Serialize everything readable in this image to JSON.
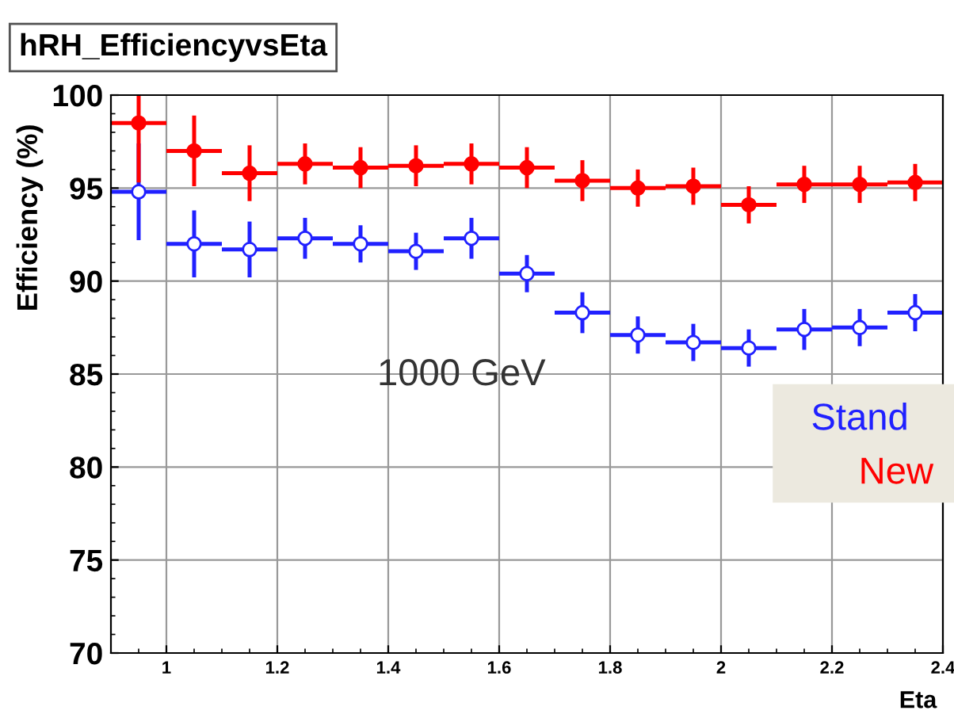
{
  "chart_data": {
    "type": "scatter",
    "title": "hRH_EfficiencyvsEta",
    "xlabel": "Eta",
    "ylabel": "Efficiency (%)",
    "x": [
      0.95,
      1.05,
      1.15,
      1.25,
      1.35,
      1.45,
      1.55,
      1.65,
      1.75,
      1.85,
      1.95,
      2.05,
      2.15,
      2.25,
      2.35
    ],
    "series": [
      {
        "name": "Stand",
        "color": "#2020ff",
        "marker": "open_circle",
        "values": [
          94.8,
          92.0,
          91.7,
          92.3,
          92.0,
          91.6,
          92.3,
          90.4,
          88.3,
          87.1,
          86.7,
          86.4,
          87.4,
          87.5,
          88.3
        ],
        "errors": [
          2.6,
          1.8,
          1.5,
          1.1,
          1.0,
          1.0,
          1.1,
          1.0,
          1.1,
          1.0,
          1.0,
          1.0,
          1.1,
          1.0,
          1.0
        ],
        "xerrors": [
          0.05,
          0.05,
          0.05,
          0.05,
          0.05,
          0.05,
          0.05,
          0.05,
          0.05,
          0.05,
          0.05,
          0.05,
          0.05,
          0.05,
          0.05
        ]
      },
      {
        "name": "New",
        "color": "#ff0000",
        "marker": "circle",
        "values": [
          98.5,
          97.0,
          95.8,
          96.3,
          96.1,
          96.2,
          96.3,
          96.1,
          95.4,
          95.0,
          95.1,
          94.1,
          95.2,
          95.2,
          95.3
        ],
        "errors": [
          3.2,
          1.9,
          1.5,
          1.1,
          1.1,
          1.1,
          1.1,
          1.1,
          1.1,
          1.0,
          1.0,
          1.0,
          1.0,
          1.0,
          1.0
        ],
        "xerrors": [
          0.05,
          0.05,
          0.05,
          0.05,
          0.05,
          0.05,
          0.05,
          0.05,
          0.05,
          0.05,
          0.05,
          0.05,
          0.05,
          0.05,
          0.05
        ]
      }
    ],
    "xlim": [
      0.9,
      2.4
    ],
    "xticks": [
      1,
      1.2,
      1.4,
      1.6,
      1.8,
      2,
      2.2,
      2.4
    ],
    "ylim": [
      70,
      100
    ],
    "yticks": [
      70,
      75,
      80,
      85,
      90,
      95,
      100
    ],
    "grid": true,
    "legend": "right",
    "annotations": [
      "1000 GeV"
    ]
  }
}
